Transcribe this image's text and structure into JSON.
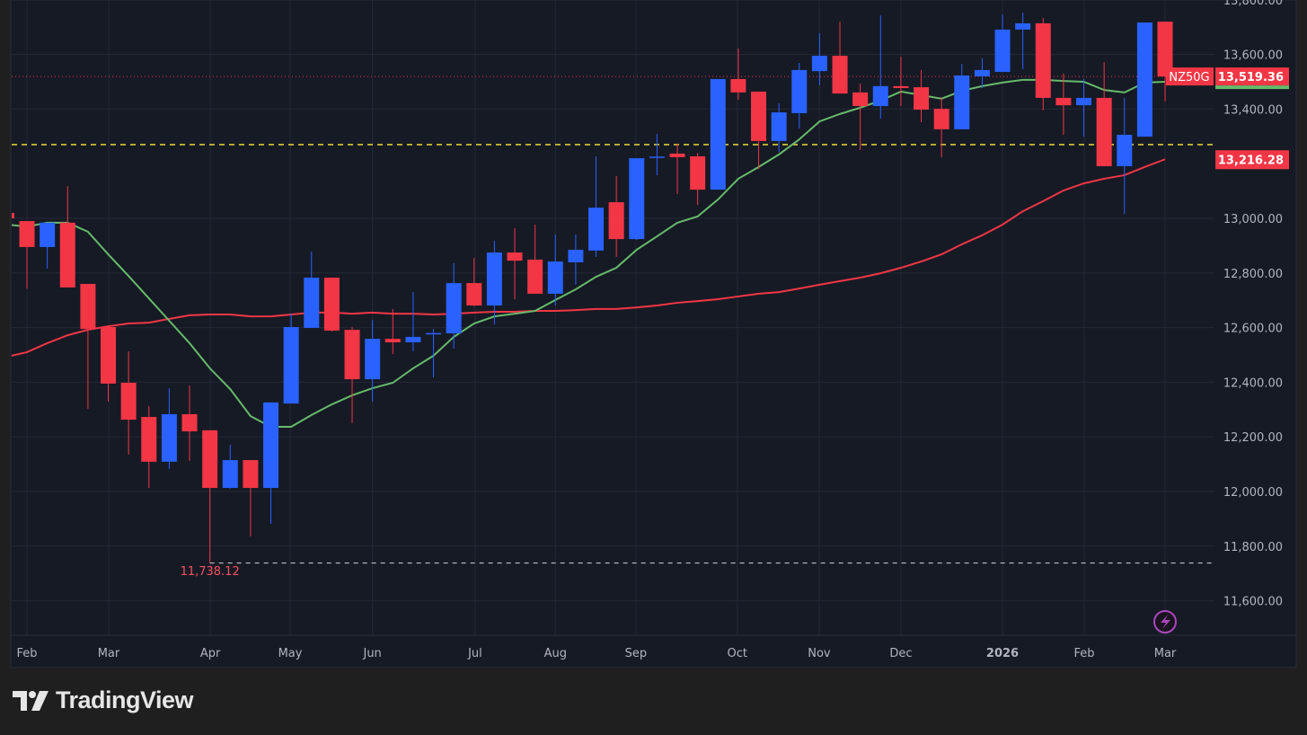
{
  "chart_data": {
    "type": "candlestick",
    "symbol": "NZ50G",
    "interval": "weekly",
    "last_price": "13,519.36",
    "ma_slow_label": "13,216.28",
    "low_label": "11,738.12",
    "reference_line": 13270,
    "low_line": 11738.12,
    "ylim": [
      11480,
      13800
    ],
    "y_ticks": [
      "13,800.00",
      "13,600.00",
      "13,400.00",
      "13,000.00",
      "12,800.00",
      "12,600.00",
      "12,400.00",
      "12,200.00",
      "12,000.00",
      "11,800.00",
      "11,600.00"
    ],
    "x_ticks": [
      "Feb",
      "Mar",
      "Apr",
      "May",
      "Jun",
      "Jul",
      "Aug",
      "Sep",
      "Oct",
      "Nov",
      "Dec",
      "2026",
      "Feb",
      "Mar"
    ],
    "grid": true,
    "colors": {
      "up": "#2962ff",
      "down": "#f23645",
      "ma_fast": "#66bb6a",
      "ma_slow": "#f23645",
      "reference": "#ffeb3b",
      "background": "#161a25"
    },
    "ohlc": [
      [
        13020,
        13030,
        12990,
        13000
      ],
      [
        12990,
        12990,
        12743,
        12895
      ],
      [
        12895,
        12984,
        12816,
        12984
      ],
      [
        12984,
        13118,
        12747,
        12747
      ],
      [
        12760,
        12760,
        12303,
        12595
      ],
      [
        12602,
        12602,
        12329,
        12395
      ],
      [
        12398,
        12513,
        12135,
        12263
      ],
      [
        12273,
        12313,
        12013,
        12109
      ],
      [
        12109,
        12378,
        12082,
        12283
      ],
      [
        12283,
        12388,
        12112,
        12220
      ],
      [
        12224,
        12224,
        11738.12,
        12013
      ],
      [
        12013,
        12171,
        12010,
        12115
      ],
      [
        12115,
        12115,
        11836,
        12013
      ],
      [
        12013,
        12326,
        11882,
        12326
      ],
      [
        12322,
        12651,
        12322,
        12602
      ],
      [
        12599,
        12878,
        12599,
        12783
      ],
      [
        12783,
        12783,
        12586,
        12589
      ],
      [
        12592,
        12602,
        12250,
        12411
      ],
      [
        12411,
        12628,
        12329,
        12559
      ],
      [
        12559,
        12668,
        12503,
        12546
      ],
      [
        12546,
        12730,
        12513,
        12566
      ],
      [
        12579,
        12595,
        12418,
        12580
      ],
      [
        12579,
        12836,
        12523,
        12763
      ],
      [
        12763,
        12855,
        12678,
        12681
      ],
      [
        12681,
        12918,
        12612,
        12875
      ],
      [
        12875,
        12964,
        12704,
        12845
      ],
      [
        12849,
        12977,
        12724,
        12724
      ],
      [
        12724,
        12941,
        12681,
        12842
      ],
      [
        12839,
        12941,
        12757,
        12885
      ],
      [
        12882,
        13227,
        12859,
        13039
      ],
      [
        13059,
        13155,
        12859,
        12924
      ],
      [
        12924,
        13220,
        12921,
        13220
      ],
      [
        13224,
        13309,
        13158,
        13226
      ],
      [
        13237,
        13273,
        13089,
        13224
      ],
      [
        13227,
        13240,
        13049,
        13105
      ],
      [
        13105,
        13510,
        13105,
        13510
      ],
      [
        13510,
        13622,
        13434,
        13461
      ],
      [
        13464,
        13464,
        13181,
        13283
      ],
      [
        13283,
        13421,
        13243,
        13388
      ],
      [
        13385,
        13569,
        13329,
        13543
      ],
      [
        13539,
        13678,
        13487,
        13595
      ],
      [
        13595,
        13720,
        13457,
        13457
      ],
      [
        13461,
        13493,
        13250,
        13411
      ],
      [
        13411,
        13743,
        13365,
        13484
      ],
      [
        13484,
        13592,
        13411,
        13477
      ],
      [
        13480,
        13543,
        13352,
        13398
      ],
      [
        13401,
        13444,
        13224,
        13326
      ],
      [
        13326,
        13566,
        13326,
        13523
      ],
      [
        13520,
        13586,
        13477,
        13543
      ],
      [
        13536,
        13747,
        13536,
        13691
      ],
      [
        13691,
        13753,
        13546,
        13714
      ],
      [
        13714,
        13734,
        13395,
        13441
      ],
      [
        13441,
        13530,
        13306,
        13414
      ],
      [
        13414,
        13510,
        13299,
        13441
      ],
      [
        13441,
        13572,
        13191,
        13191
      ],
      [
        13191,
        13441,
        13016,
        13306
      ],
      [
        13299,
        13717,
        13299,
        13717
      ],
      [
        13720,
        13720,
        13428,
        13519.36
      ]
    ],
    "ma_fast": [
      12977,
      12970,
      12984,
      12984,
      12951,
      12868,
      12789,
      12707,
      12625,
      12543,
      12451,
      12375,
      12276,
      12237,
      12237,
      12280,
      12319,
      12352,
      12378,
      12398,
      12451,
      12497,
      12566,
      12615,
      12641,
      12651,
      12661,
      12701,
      12740,
      12786,
      12819,
      12885,
      12934,
      12984,
      13007,
      13069,
      13145,
      13188,
      13234,
      13289,
      13355,
      13382,
      13405,
      13431,
      13464,
      13451,
      13438,
      13467,
      13484,
      13497,
      13507,
      13507,
      13503,
      13500,
      13470,
      13461,
      13497,
      13500
    ],
    "ma_slow": [
      12493,
      12510,
      12543,
      12572,
      12592,
      12605,
      12615,
      12618,
      12632,
      12645,
      12648,
      12648,
      12641,
      12641,
      12648,
      12655,
      12655,
      12651,
      12655,
      12651,
      12651,
      12648,
      12651,
      12655,
      12658,
      12658,
      12661,
      12661,
      12664,
      12668,
      12668,
      12674,
      12681,
      12691,
      12697,
      12704,
      12714,
      12724,
      12730,
      12743,
      12757,
      12770,
      12783,
      12799,
      12819,
      12842,
      12868,
      12905,
      12938,
      12977,
      13026,
      13063,
      13102,
      13128,
      13145,
      13158,
      13188,
      13216.28
    ]
  },
  "footer": {
    "brand": "TradingView"
  }
}
